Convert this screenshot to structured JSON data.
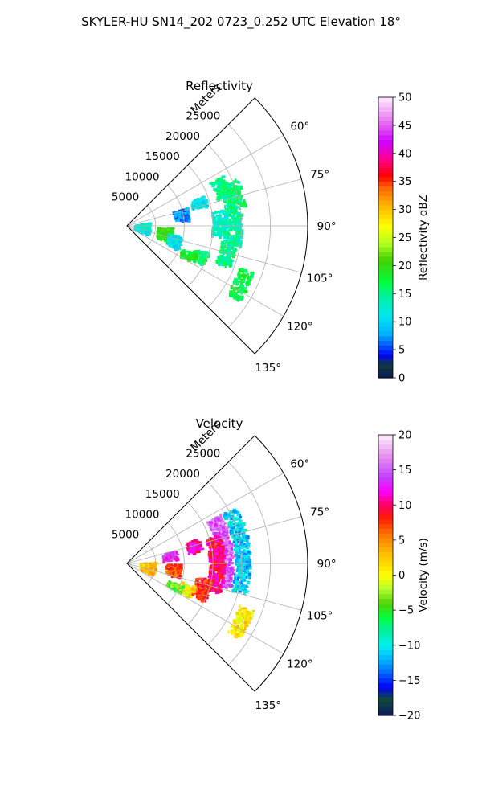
{
  "figure": {
    "title": "SKYLER-HU  SN14_202  0723_0.252 UTC Elevation 18°"
  },
  "chart_data": [
    {
      "type": "heatmap",
      "title": "Reflectivity",
      "range_label": "Meters",
      "range_ticks": [
        5000,
        10000,
        15000,
        20000,
        25000
      ],
      "range_tick_labels": [
        "5000",
        "10000",
        "15000",
        "20000",
        "25000"
      ],
      "range_max": 31500,
      "azimuth_range": [
        45,
        135
      ],
      "azimuth_ticks": [
        60,
        75,
        90,
        105,
        120,
        135
      ],
      "azimuth_tick_labels": [
        "60°",
        "75°",
        "90°",
        "105°",
        "120°",
        "135°"
      ],
      "grid": true,
      "colorbar": {
        "label": "Reflectivity dBZ",
        "min": 0,
        "max": 50,
        "ticks": [
          0,
          5,
          10,
          15,
          20,
          25,
          30,
          35,
          40,
          45,
          50
        ],
        "tick_labels": [
          "0",
          "5",
          "10",
          "15",
          "20",
          "25",
          "30",
          "35",
          "40",
          "45",
          "50"
        ]
      },
      "field_cells": [
        {
          "r": 17500,
          "az_from": 62,
          "az_to": 74,
          "value": 15
        },
        {
          "r": 18500,
          "az_from": 72,
          "az_to": 100,
          "value": 14
        },
        {
          "r": 17800,
          "az_from": 98,
          "az_to": 112,
          "value": 15
        },
        {
          "r": 19500,
          "az_from": 66,
          "az_to": 80,
          "value": 16
        },
        {
          "r": 16000,
          "az_from": 80,
          "az_to": 96,
          "value": 13
        },
        {
          "r": 13500,
          "az_from": 108,
          "az_to": 117,
          "value": 16
        },
        {
          "r": 11500,
          "az_from": 112,
          "az_to": 119,
          "value": 18
        },
        {
          "r": 13000,
          "az_from": 68,
          "az_to": 76,
          "value": 11
        },
        {
          "r": 9500,
          "az_from": 72,
          "az_to": 84,
          "value": 7
        },
        {
          "r": 6500,
          "az_from": 92,
          "az_to": 110,
          "value": 20
        },
        {
          "r": 8500,
          "az_from": 100,
          "az_to": 114,
          "value": 11
        },
        {
          "r": 2500,
          "az_from": 80,
          "az_to": 110,
          "value": 12
        },
        {
          "r": 22000,
          "az_from": 110,
          "az_to": 124,
          "value": 17
        }
      ]
    },
    {
      "type": "heatmap",
      "title": "Velocity",
      "range_label": "Meters",
      "range_ticks": [
        5000,
        10000,
        15000,
        20000,
        25000
      ],
      "range_tick_labels": [
        "5000",
        "10000",
        "15000",
        "20000",
        "25000"
      ],
      "range_max": 31500,
      "azimuth_range": [
        45,
        135
      ],
      "azimuth_ticks": [
        60,
        75,
        90,
        105,
        120,
        135
      ],
      "azimuth_tick_labels": [
        "60°",
        "75°",
        "90°",
        "105°",
        "120°",
        "135°"
      ],
      "grid": true,
      "colorbar": {
        "label": "Velocity (m/s)",
        "min": -20,
        "max": 20,
        "ticks": [
          -20,
          -15,
          -10,
          -5,
          0,
          5,
          10,
          15,
          20
        ],
        "tick_labels": [
          "−20",
          "−15",
          "−10",
          "−5",
          "0",
          "5",
          "10",
          "15",
          "20"
        ]
      },
      "field_cells": [
        {
          "r": 20000,
          "az_from": 62,
          "az_to": 104,
          "value": -11
        },
        {
          "r": 17000,
          "az_from": 62,
          "az_to": 104,
          "value": 15
        },
        {
          "r": 15500,
          "az_from": 72,
          "az_to": 108,
          "value": 10
        },
        {
          "r": 13500,
          "az_from": 100,
          "az_to": 116,
          "value": 8
        },
        {
          "r": 11000,
          "az_from": 108,
          "az_to": 118,
          "value": 1
        },
        {
          "r": 9000,
          "az_from": 112,
          "az_to": 119,
          "value": -4
        },
        {
          "r": 12000,
          "az_from": 70,
          "az_to": 80,
          "value": 11
        },
        {
          "r": 7500,
          "az_from": 74,
          "az_to": 84,
          "value": 13
        },
        {
          "r": 8000,
          "az_from": 90,
          "az_to": 104,
          "value": 7
        },
        {
          "r": 3500,
          "az_from": 86,
          "az_to": 112,
          "value": 3
        },
        {
          "r": 22000,
          "az_from": 110,
          "az_to": 124,
          "value": 1
        }
      ]
    }
  ]
}
